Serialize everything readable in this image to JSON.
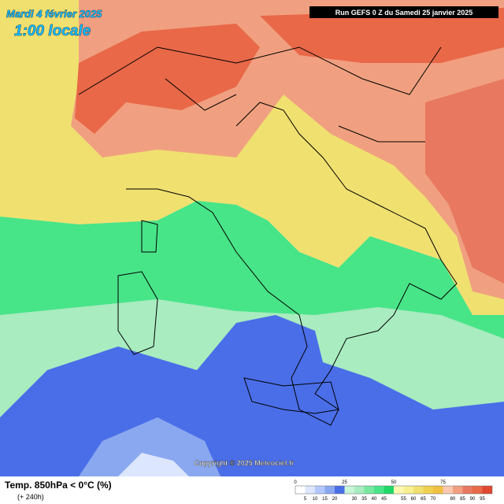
{
  "header": {
    "date": "Mardi 4 février 2025",
    "time": "1:00 locale",
    "run": "Run GEFS 0 Z du Samedi 25 janvier 2025"
  },
  "copyright": "Copyright © 2025 Meteociel.fr",
  "footer": {
    "title": "Temp. 850hPa < 0°C (%)",
    "lead": "(+ 240h)"
  },
  "legend": {
    "major": [
      "0",
      "25",
      "50",
      "75"
    ],
    "minor": [
      "5",
      "10",
      "15",
      "20",
      "30",
      "35",
      "40",
      "45",
      "55",
      "60",
      "65",
      "70",
      "80",
      "85",
      "90",
      "95"
    ]
  }
}
